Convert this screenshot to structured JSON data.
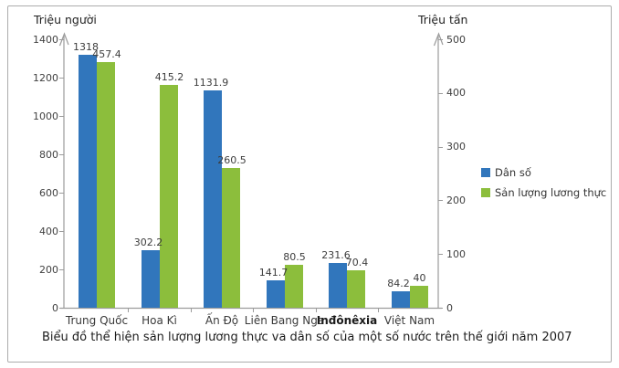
{
  "chart_data": {
    "type": "bar",
    "title": "Biểu đồ thể hiện sản lượng lương thực va dân số của một số nước trên thế giới năm 2007",
    "categories": [
      "Trung Quốc",
      "Hoa Kì",
      "Ấn Độ",
      "Liên Bang Nga",
      "Inđônêxia",
      "Việt Nam"
    ],
    "bold_category": "Inđônêxia",
    "series": [
      {
        "name": "Dân số",
        "axis": "left",
        "color": "#3176BC",
        "values": [
          1318,
          302.2,
          1131.9,
          141.7,
          231.6,
          84.2
        ]
      },
      {
        "name": "Sản lượng lương thực",
        "axis": "right",
        "color": "#8CBE3C",
        "values": [
          457.4,
          415.2,
          260.5,
          80.5,
          70.4,
          40
        ]
      }
    ],
    "left_axis": {
      "title": "Triệu  người",
      "ylim": [
        0,
        1400
      ],
      "ticks": [
        0,
        200,
        400,
        600,
        800,
        1000,
        1200,
        1400
      ]
    },
    "right_axis": {
      "title": "Triệu tấn",
      "ylim": [
        0,
        500
      ],
      "ticks": [
        0,
        100,
        200,
        300,
        400,
        500
      ]
    },
    "legend_position": "right",
    "grid": false
  }
}
